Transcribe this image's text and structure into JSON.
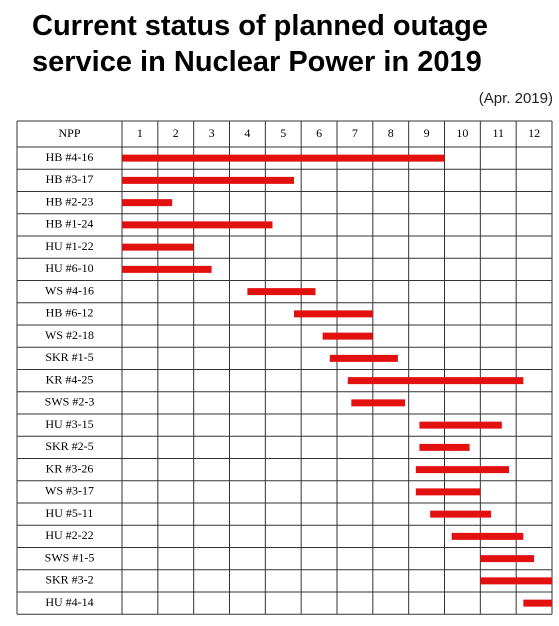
{
  "chart_data": {
    "type": "gantt",
    "title": "Current status of planned outage service in Nuclear Power in 2019",
    "subtitle": "(Apr. 2019)",
    "row_header": "NPP",
    "months": [
      "1",
      "2",
      "3",
      "4",
      "5",
      "6",
      "7",
      "8",
      "9",
      "10",
      "11",
      "12"
    ],
    "xlim": [
      0,
      12
    ],
    "color": "#e31010",
    "tasks": [
      {
        "name": "HB #4-16",
        "start": 0,
        "end": 9.0
      },
      {
        "name": "HB #3-17",
        "start": 0,
        "end": 4.8
      },
      {
        "name": "HB #2-23",
        "start": 0,
        "end": 1.4
      },
      {
        "name": "HB #1-24",
        "start": 0,
        "end": 4.2
      },
      {
        "name": "HU #1-22",
        "start": 0,
        "end": 2.0
      },
      {
        "name": "HU #6-10",
        "start": 0,
        "end": 2.5
      },
      {
        "name": "WS #4-16",
        "start": 3.5,
        "end": 5.4
      },
      {
        "name": "HB #6-12",
        "start": 4.8,
        "end": 7.0
      },
      {
        "name": "WS #2-18",
        "start": 5.6,
        "end": 7.0
      },
      {
        "name": "SKR #1-5",
        "start": 5.8,
        "end": 7.7
      },
      {
        "name": "KR #4-25",
        "start": 6.3,
        "end": 11.2
      },
      {
        "name": "SWS #2-3",
        "start": 6.4,
        "end": 7.9
      },
      {
        "name": "HU #3-15",
        "start": 8.3,
        "end": 10.6
      },
      {
        "name": "SKR #2-5",
        "start": 8.3,
        "end": 9.7
      },
      {
        "name": "KR #3-26",
        "start": 8.2,
        "end": 10.8
      },
      {
        "name": "WS #3-17",
        "start": 8.2,
        "end": 10.0
      },
      {
        "name": "HU #5-11",
        "start": 8.6,
        "end": 10.3
      },
      {
        "name": "HU #2-22",
        "start": 9.2,
        "end": 11.2
      },
      {
        "name": "SWS #1-5",
        "start": 10.0,
        "end": 11.5
      },
      {
        "name": "SKR #3-2",
        "start": 10.0,
        "end": 12.0
      },
      {
        "name": "HU #4-14",
        "start": 11.2,
        "end": 12.0
      }
    ]
  }
}
